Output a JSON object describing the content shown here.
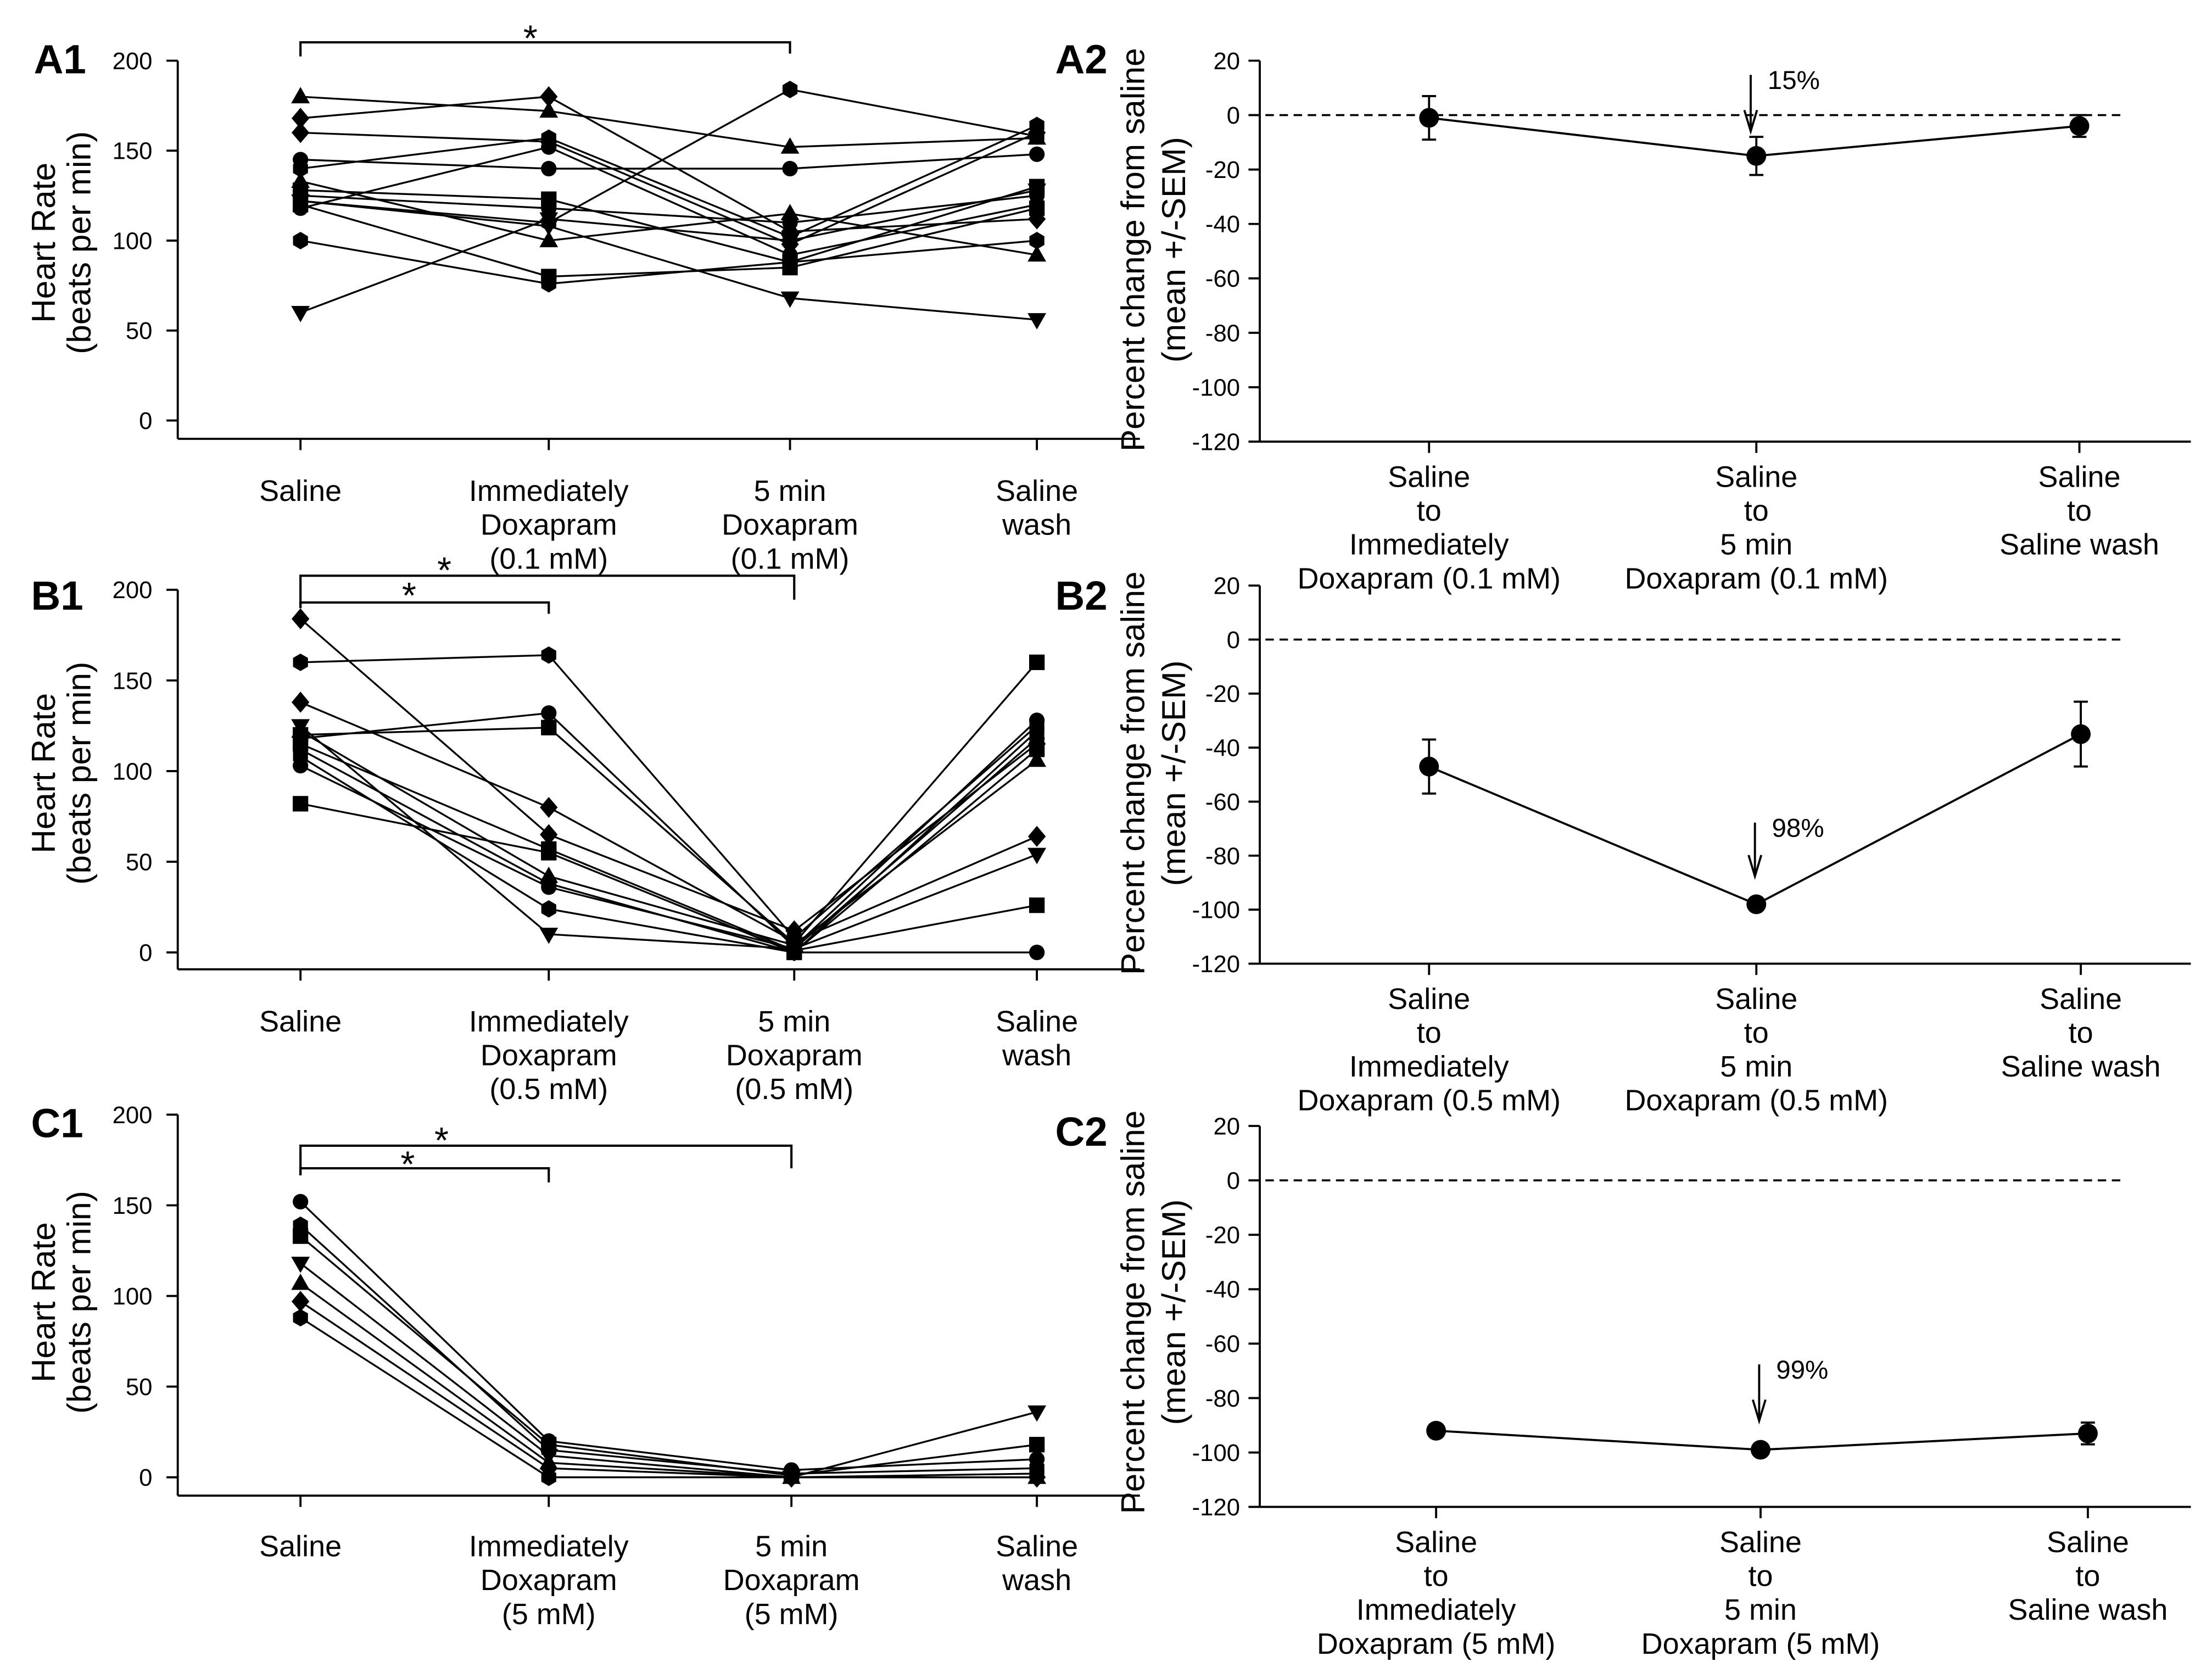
{
  "chart_data": [
    {
      "panel": "A1",
      "type": "line",
      "ylabel": [
        "Heart Rate",
        "(beats per min)"
      ],
      "ylim": [
        0,
        200
      ],
      "yticks": [
        0,
        50,
        100,
        150,
        200
      ],
      "categories": [
        [
          "Saline"
        ],
        [
          "Immediately",
          "Doxapram",
          "(0.1 mM)"
        ],
        [
          "5 min",
          "Doxapram",
          "(0.1 mM)"
        ],
        [
          "Saline",
          "wash"
        ]
      ],
      "brackets": [
        {
          "from": 0,
          "to": 2,
          "label": "*"
        }
      ],
      "series": [
        {
          "marker": "triangle-up",
          "values": [
            180,
            172,
            152,
            157
          ]
        },
        {
          "marker": "diamond",
          "values": [
            168,
            180,
            105,
            112
          ]
        },
        {
          "marker": "diamond",
          "values": [
            160,
            155,
            98,
            160
          ]
        },
        {
          "marker": "circle",
          "values": [
            145,
            140,
            140,
            148
          ]
        },
        {
          "marker": "hexagon",
          "values": [
            140,
            157,
            102,
            164
          ]
        },
        {
          "marker": "triangle-up",
          "values": [
            133,
            100,
            115,
            92
          ]
        },
        {
          "marker": "square",
          "values": [
            128,
            123,
            88,
            130
          ]
        },
        {
          "marker": "circle",
          "values": [
            125,
            118,
            110,
            125
          ]
        },
        {
          "marker": "hexagon",
          "values": [
            122,
            110,
            184,
            158
          ]
        },
        {
          "marker": "square",
          "values": [
            120,
            80,
            85,
            118
          ]
        },
        {
          "marker": "triangle-down",
          "values": [
            122,
            108,
            68,
            56
          ]
        },
        {
          "marker": "circle",
          "values": [
            118,
            152,
            92,
            120
          ]
        },
        {
          "marker": "hexagon",
          "values": [
            100,
            76,
            88,
            100
          ]
        },
        {
          "marker": "triangle-down",
          "values": [
            60,
            112,
            100,
            128
          ]
        }
      ]
    },
    {
      "panel": "A2",
      "type": "line",
      "ylabel": [
        "Percent change from saline",
        "(mean +/-SEM)"
      ],
      "ylim": [
        -120,
        20
      ],
      "yticks": [
        20,
        0,
        -20,
        -40,
        -60,
        -80,
        -100,
        -120
      ],
      "reference_line": 0,
      "categories": [
        [
          "Saline",
          "to",
          "Immediately",
          "Doxapram (0.1 mM)"
        ],
        [
          "Saline",
          "to",
          "5 min",
          "Doxapram (0.1 mM)"
        ],
        [
          "Saline",
          "to",
          "Saline wash"
        ]
      ],
      "values": [
        -1,
        -15,
        -4
      ],
      "errors": [
        8,
        7,
        4
      ],
      "arrow": {
        "category": 1,
        "label": "15%"
      }
    },
    {
      "panel": "B1",
      "type": "line",
      "ylabel": [
        "Heart Rate",
        "(beats per min)"
      ],
      "ylim": [
        0,
        200
      ],
      "yticks": [
        0,
        50,
        100,
        150,
        200
      ],
      "categories": [
        [
          "Saline"
        ],
        [
          "Immediately",
          "Doxapram",
          "(0.5 mM)"
        ],
        [
          "5 min",
          "Doxapram",
          "(0.5 mM)"
        ],
        [
          "Saline",
          "wash"
        ]
      ],
      "brackets": [
        {
          "from": 0,
          "to": 1,
          "label": "*"
        },
        {
          "from": 0,
          "to": 2,
          "label": "*"
        }
      ],
      "series": [
        {
          "marker": "diamond",
          "values": [
            184,
            65,
            12,
            115
          ]
        },
        {
          "marker": "hexagon",
          "values": [
            160,
            164,
            8,
            125
          ]
        },
        {
          "marker": "diamond",
          "values": [
            138,
            80,
            6,
            64
          ]
        },
        {
          "marker": "triangle-down",
          "values": [
            125,
            10,
            2,
            54
          ]
        },
        {
          "marker": "triangle-up",
          "values": [
            122,
            42,
            4,
            106
          ]
        },
        {
          "marker": "square",
          "values": [
            120,
            124,
            5,
            160
          ]
        },
        {
          "marker": "circle",
          "values": [
            118,
            132,
            3,
            128
          ]
        },
        {
          "marker": "square",
          "values": [
            115,
            57,
            1,
            26
          ]
        },
        {
          "marker": "circle",
          "values": [
            112,
            38,
            0,
            0
          ]
        },
        {
          "marker": "hexagon",
          "values": [
            108,
            24,
            0,
            122
          ]
        },
        {
          "marker": "circle",
          "values": [
            103,
            36,
            2,
            118
          ]
        },
        {
          "marker": "square",
          "values": [
            82,
            55,
            0,
            112
          ]
        }
      ]
    },
    {
      "panel": "B2",
      "type": "line",
      "ylabel": [
        "Percent change from saline",
        "(mean +/-SEM)"
      ],
      "ylim": [
        -120,
        20
      ],
      "yticks": [
        20,
        0,
        -20,
        -40,
        -60,
        -80,
        -100,
        -120
      ],
      "reference_line": 0,
      "categories": [
        [
          "Saline",
          "to",
          "Immediately",
          "Doxapram (0.5 mM)"
        ],
        [
          "Saline",
          "to",
          "5 min",
          "Doxapram (0.5 mM)"
        ],
        [
          "Saline",
          "to",
          "Saline wash"
        ]
      ],
      "values": [
        -47,
        -98,
        -35
      ],
      "errors": [
        10,
        1,
        12
      ],
      "arrow": {
        "category": 1,
        "label": "98%"
      }
    },
    {
      "panel": "C1",
      "type": "line",
      "ylabel": [
        "Heart Rate",
        "(beats per min)"
      ],
      "ylim": [
        0,
        200
      ],
      "yticks": [
        0,
        50,
        100,
        150,
        200
      ],
      "categories": [
        [
          "Saline"
        ],
        [
          "Immediately",
          "Doxapram",
          "(5 mM)"
        ],
        [
          "5 min",
          "Doxapram",
          "(5 mM)"
        ],
        [
          "Saline",
          "wash"
        ]
      ],
      "brackets": [
        {
          "from": 0,
          "to": 1,
          "label": "*"
        },
        {
          "from": 0,
          "to": 2,
          "label": "*"
        }
      ],
      "series": [
        {
          "marker": "circle",
          "values": [
            152,
            20,
            4,
            10
          ]
        },
        {
          "marker": "hexagon",
          "values": [
            139,
            15,
            2,
            5
          ]
        },
        {
          "marker": "square",
          "values": [
            133,
            18,
            1,
            18
          ]
        },
        {
          "marker": "triangle-down",
          "values": [
            118,
            12,
            0,
            36
          ]
        },
        {
          "marker": "triangle-up",
          "values": [
            107,
            8,
            0,
            0
          ]
        },
        {
          "marker": "diamond",
          "values": [
            97,
            5,
            0,
            0
          ]
        },
        {
          "marker": "hexagon",
          "values": [
            88,
            0,
            0,
            2
          ]
        }
      ]
    },
    {
      "panel": "C2",
      "type": "line",
      "ylabel": [
        "Percent change from saline",
        "(mean +/-SEM)"
      ],
      "ylim": [
        -120,
        20
      ],
      "yticks": [
        20,
        0,
        -20,
        -40,
        -60,
        -80,
        -100,
        -120
      ],
      "reference_line": 0,
      "categories": [
        [
          "Saline",
          "to",
          "Immediately",
          "Doxapram (5 mM)"
        ],
        [
          "Saline",
          "to",
          "5 min",
          "Doxapram (5 mM)"
        ],
        [
          "Saline",
          "to",
          "Saline wash"
        ]
      ],
      "values": [
        -92,
        -99,
        -93
      ],
      "errors": [
        2,
        1,
        4
      ],
      "arrow": {
        "category": 1,
        "label": "99%"
      }
    }
  ]
}
